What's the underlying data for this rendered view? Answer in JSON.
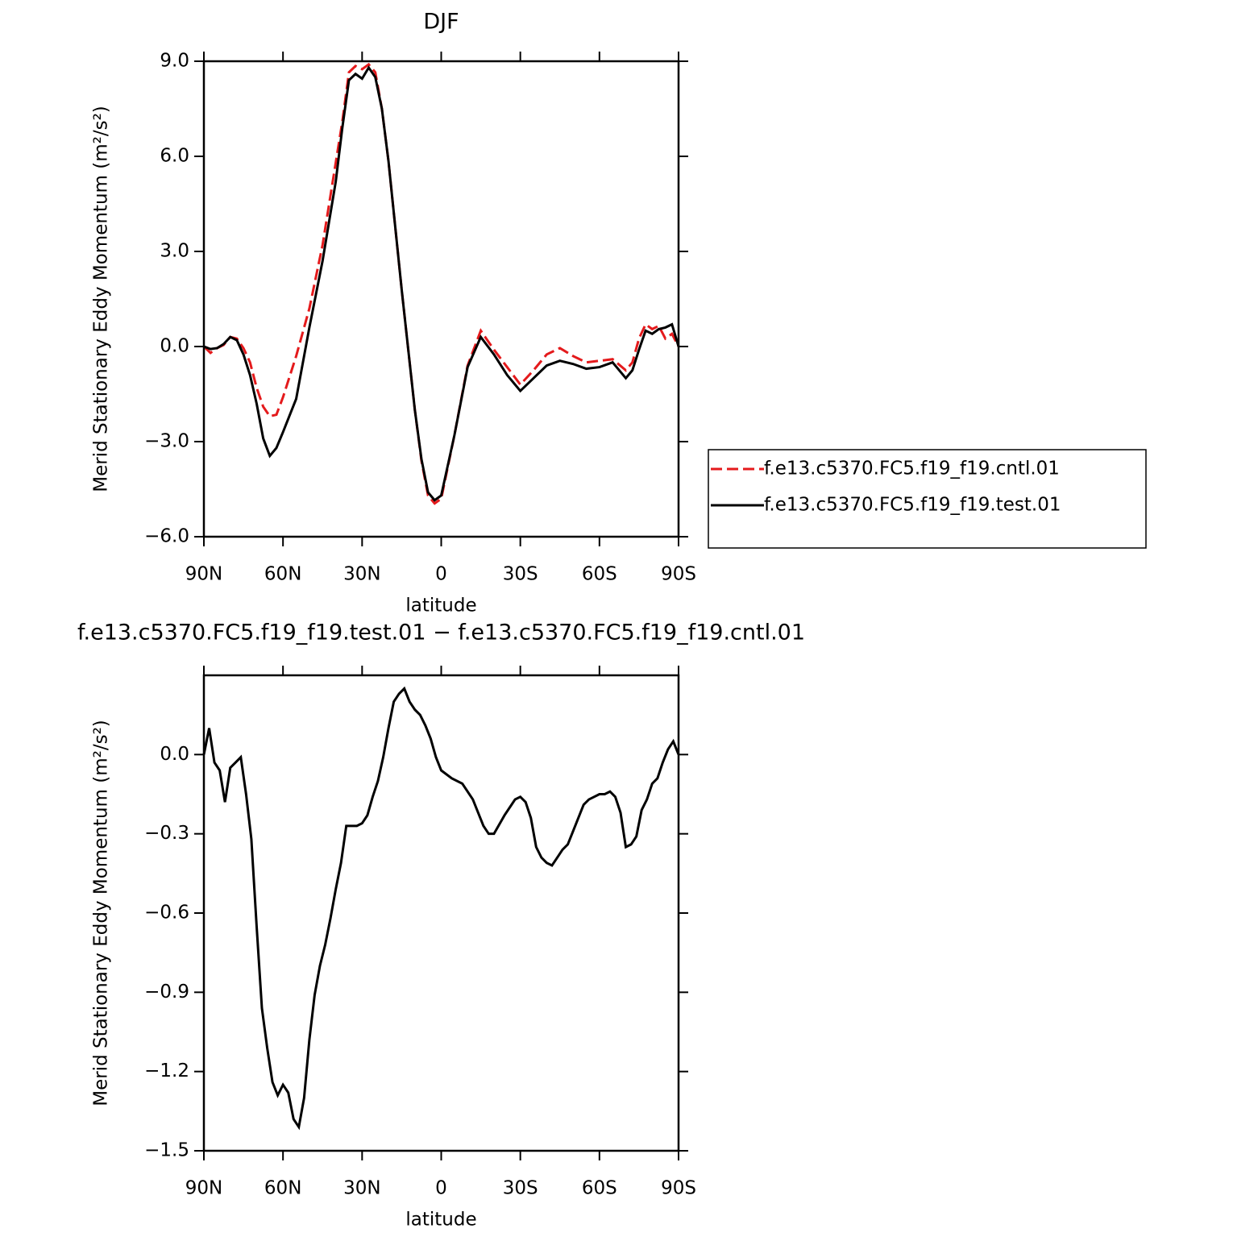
{
  "chart_data": [
    {
      "type": "line",
      "title": "DJF",
      "xlabel": "latitude",
      "ylabel": "Merid Stationary Eddy Momentum (m²/s²)",
      "x": [
        90,
        87.5,
        85,
        82.5,
        80,
        77.5,
        75,
        72.5,
        70,
        67.5,
        65,
        62.5,
        60,
        55,
        50,
        45,
        40,
        37.5,
        35,
        32.5,
        30,
        27.5,
        25,
        22.5,
        20,
        15,
        10,
        7.5,
        5,
        2.5,
        0,
        -5,
        -10,
        -15,
        -20,
        -25,
        -30,
        -35,
        -40,
        -45,
        -50,
        -55,
        -60,
        -65,
        -70,
        -72.5,
        -75,
        -77.5,
        -80,
        -82.5,
        -85,
        -87.5,
        -90
      ],
      "series": [
        {
          "name": "f.e13.c5370.FC5.f19_f19.cntl.01",
          "color": "#e41a1c",
          "dash": "dashed",
          "values": [
            0,
            -0.2,
            -0.05,
            0.05,
            0.3,
            0.25,
            -0.05,
            -0.5,
            -1.3,
            -1.9,
            -2.2,
            -2.15,
            -1.6,
            -0.3,
            1.2,
            3.2,
            5.8,
            7.1,
            8.65,
            8.85,
            8.75,
            8.9,
            8.65,
            7.5,
            5.85,
            1.8,
            -2.0,
            -3.6,
            -4.7,
            -4.95,
            -4.8,
            -2.8,
            -0.6,
            0.5,
            -0.1,
            -0.65,
            -1.2,
            -0.75,
            -0.25,
            -0.05,
            -0.3,
            -0.5,
            -0.45,
            -0.4,
            -0.75,
            -0.5,
            0.25,
            0.7,
            0.55,
            0.65,
            0.25,
            0.4,
            0
          ]
        },
        {
          "name": "f.e13.c5370.FC5.f19_f19.test.01",
          "color": "#000000",
          "dash": "solid",
          "values": [
            0,
            -0.08,
            -0.05,
            0.08,
            0.3,
            0.2,
            -0.25,
            -0.9,
            -1.8,
            -2.9,
            -3.45,
            -3.2,
            -2.7,
            -1.65,
            0.6,
            2.7,
            5.2,
            6.9,
            8.4,
            8.6,
            8.45,
            8.8,
            8.5,
            7.5,
            5.85,
            1.8,
            -2.0,
            -3.55,
            -4.6,
            -4.85,
            -4.7,
            -2.8,
            -0.65,
            0.3,
            -0.25,
            -0.9,
            -1.4,
            -1.0,
            -0.6,
            -0.45,
            -0.55,
            -0.7,
            -0.65,
            -0.5,
            -1.0,
            -0.75,
            -0.1,
            0.5,
            0.4,
            0.55,
            0.6,
            0.7,
            0
          ]
        }
      ],
      "xlim": [
        90,
        -90
      ],
      "xticks": [
        {
          "value": 90,
          "label": "90N"
        },
        {
          "value": 60,
          "label": "60N"
        },
        {
          "value": 30,
          "label": "30N"
        },
        0,
        {
          "value": -30,
          "label": "30S"
        },
        {
          "value": -60,
          "label": "60S"
        },
        {
          "value": -90,
          "label": "90S"
        }
      ],
      "ylim": [
        -6,
        9
      ],
      "yticks": [
        {
          "value": -6,
          "label": "−6.0"
        },
        {
          "value": -3,
          "label": "−3.0"
        },
        {
          "value": 0,
          "label": "0.0"
        },
        {
          "value": 3,
          "label": "3.0"
        },
        {
          "value": 6,
          "label": "6.0"
        },
        {
          "value": 9,
          "label": "9.0"
        }
      ],
      "legend": "outside-right"
    },
    {
      "type": "line",
      "title": "f.e13.c5370.FC5.f19_f19.test.01 − f.e13.c5370.FC5.f19_f19.cntl.01",
      "xlabel": "latitude",
      "ylabel": "Merid Stationary Eddy Momentum (m²/s²)",
      "x": [
        90,
        88,
        86,
        84,
        82,
        80,
        78,
        76,
        74,
        72,
        70,
        68,
        66,
        64,
        62,
        60,
        58,
        56,
        54,
        52,
        50,
        48,
        46,
        44,
        42,
        40,
        38,
        36,
        34,
        32,
        30,
        28,
        26,
        24,
        22,
        20,
        18,
        16,
        14,
        12,
        10,
        8,
        6,
        4,
        2,
        0,
        -4,
        -8,
        -12,
        -16,
        -18,
        -20,
        -24,
        -28,
        -30,
        -32,
        -34,
        -36,
        -38,
        -40,
        -42,
        -44,
        -46,
        -48,
        -50,
        -54,
        -56,
        -60,
        -62,
        -64,
        -66,
        -68,
        -70,
        -72,
        -74,
        -76,
        -78,
        -80,
        -82,
        -84,
        -86,
        -88,
        -90
      ],
      "series": [
        {
          "color": "#000000",
          "dash": "solid",
          "values": [
            0,
            0.1,
            -0.03,
            -0.06,
            -0.18,
            -0.05,
            -0.03,
            -0.01,
            -0.15,
            -0.32,
            -0.65,
            -0.96,
            -1.11,
            -1.24,
            -1.29,
            -1.25,
            -1.28,
            -1.38,
            -1.41,
            -1.3,
            -1.08,
            -0.91,
            -0.8,
            -0.72,
            -0.62,
            -0.51,
            -0.41,
            -0.27,
            -0.27,
            -0.27,
            -0.26,
            -0.23,
            -0.16,
            -0.1,
            -0.01,
            0.1,
            0.2,
            0.23,
            0.25,
            0.2,
            0.17,
            0.15,
            0.11,
            0.06,
            -0.01,
            -0.06,
            -0.09,
            -0.11,
            -0.17,
            -0.27,
            -0.3,
            -0.3,
            -0.23,
            -0.17,
            -0.16,
            -0.18,
            -0.24,
            -0.35,
            -0.39,
            -0.41,
            -0.42,
            -0.39,
            -0.36,
            -0.34,
            -0.29,
            -0.19,
            -0.17,
            -0.15,
            -0.15,
            -0.14,
            -0.16,
            -0.22,
            -0.35,
            -0.34,
            -0.31,
            -0.21,
            -0.17,
            -0.11,
            -0.09,
            -0.03,
            0.02,
            0.05,
            0
          ]
        }
      ],
      "xlim": [
        90,
        -90
      ],
      "xticks": [
        {
          "value": 90,
          "label": "90N"
        },
        {
          "value": 60,
          "label": "60N"
        },
        {
          "value": 30,
          "label": "30N"
        },
        0,
        {
          "value": -30,
          "label": "30S"
        },
        {
          "value": -60,
          "label": "60S"
        },
        {
          "value": -90,
          "label": "90S"
        }
      ],
      "ylim": [
        -1.5,
        0.3
      ],
      "yticks": [
        {
          "value": -1.5,
          "label": "−1.5"
        },
        {
          "value": -1.2,
          "label": "−1.2"
        },
        {
          "value": -0.9,
          "label": "−0.9"
        },
        {
          "value": -0.6,
          "label": "−0.6"
        },
        {
          "value": -0.3,
          "label": "−0.3"
        },
        {
          "value": 0,
          "label": "0.0"
        }
      ]
    }
  ]
}
